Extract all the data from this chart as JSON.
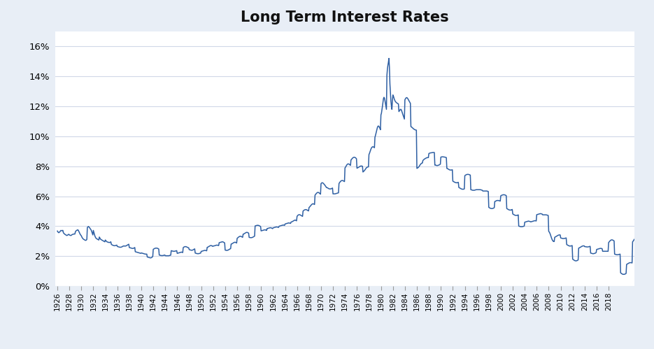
{
  "title": "Long Term Interest Rates",
  "title_fontsize": 15,
  "line_color": "#2E5FA3",
  "background_color": "#E8EEF6",
  "plot_bg_color": "#FFFFFF",
  "ylim": [
    0,
    0.17
  ],
  "yticks": [
    0.0,
    0.02,
    0.04,
    0.06,
    0.08,
    0.1,
    0.12,
    0.14,
    0.16
  ],
  "grid_color": "#D0D8E8",
  "line_width": 1.1,
  "monthly_data": [
    3.68,
    3.63,
    3.58,
    3.57,
    3.6,
    3.63,
    3.68,
    3.72,
    3.71,
    3.7,
    3.72,
    3.72,
    3.57,
    3.52,
    3.5,
    3.46,
    3.44,
    3.42,
    3.4,
    3.38,
    3.4,
    3.42,
    3.45,
    3.46,
    3.42,
    3.4,
    3.39,
    3.38,
    3.4,
    3.43,
    3.45,
    3.46,
    3.47,
    3.48,
    3.48,
    3.48,
    3.62,
    3.68,
    3.71,
    3.73,
    3.75,
    3.76,
    3.72,
    3.65,
    3.57,
    3.5,
    3.44,
    3.4,
    3.36,
    3.28,
    3.22,
    3.18,
    3.14,
    3.12,
    3.1,
    3.08,
    3.06,
    3.06,
    3.08,
    3.12,
    3.92,
    3.95,
    3.98,
    3.96,
    3.92,
    3.88,
    3.82,
    3.78,
    3.72,
    3.62,
    3.52,
    3.42,
    3.72,
    3.6,
    3.48,
    3.36,
    3.28,
    3.22,
    3.18,
    3.16,
    3.14,
    3.12,
    3.1,
    3.08,
    3.28,
    3.22,
    3.16,
    3.12,
    3.1,
    3.08,
    3.06,
    3.04,
    3.02,
    3.0,
    2.98,
    2.96,
    3.08,
    3.04,
    3.0,
    2.97,
    2.95,
    2.94,
    2.93,
    2.92,
    2.91,
    2.92,
    2.94,
    2.96,
    2.8,
    2.77,
    2.75,
    2.73,
    2.72,
    2.71,
    2.7,
    2.7,
    2.71,
    2.72,
    2.73,
    2.74,
    2.65,
    2.64,
    2.63,
    2.62,
    2.61,
    2.6,
    2.6,
    2.6,
    2.61,
    2.62,
    2.64,
    2.66,
    2.68,
    2.68,
    2.68,
    2.68,
    2.68,
    2.68,
    2.7,
    2.72,
    2.74,
    2.76,
    2.78,
    2.8,
    2.58,
    2.57,
    2.56,
    2.55,
    2.54,
    2.53,
    2.52,
    2.52,
    2.52,
    2.54,
    2.56,
    2.58,
    2.3,
    2.29,
    2.28,
    2.27,
    2.26,
    2.25,
    2.24,
    2.23,
    2.22,
    2.21,
    2.2,
    2.19,
    2.22,
    2.21,
    2.2,
    2.19,
    2.18,
    2.17,
    2.16,
    2.15,
    2.14,
    2.14,
    2.14,
    2.14,
    1.95,
    1.94,
    1.93,
    1.92,
    1.91,
    1.9,
    1.89,
    1.89,
    1.9,
    1.92,
    1.95,
    1.98,
    2.46,
    2.48,
    2.5,
    2.52,
    2.53,
    2.54,
    2.54,
    2.54,
    2.53,
    2.52,
    2.5,
    2.48,
    2.08,
    2.07,
    2.06,
    2.05,
    2.04,
    2.04,
    2.04,
    2.04,
    2.05,
    2.06,
    2.07,
    2.08,
    2.04,
    2.03,
    2.03,
    2.03,
    2.03,
    2.03,
    2.03,
    2.03,
    2.04,
    2.05,
    2.06,
    2.07,
    2.37,
    2.36,
    2.35,
    2.34,
    2.33,
    2.33,
    2.33,
    2.33,
    2.34,
    2.35,
    2.36,
    2.37,
    2.19,
    2.2,
    2.21,
    2.22,
    2.23,
    2.24,
    2.25,
    2.26,
    2.27,
    2.27,
    2.26,
    2.24,
    2.57,
    2.6,
    2.62,
    2.63,
    2.64,
    2.64,
    2.63,
    2.62,
    2.6,
    2.58,
    2.57,
    2.56,
    2.44,
    2.43,
    2.42,
    2.41,
    2.4,
    2.4,
    2.4,
    2.41,
    2.43,
    2.45,
    2.47,
    2.49,
    2.21,
    2.2,
    2.19,
    2.18,
    2.17,
    2.17,
    2.17,
    2.17,
    2.18,
    2.19,
    2.2,
    2.21,
    2.32,
    2.33,
    2.34,
    2.35,
    2.36,
    2.37,
    2.38,
    2.39,
    2.39,
    2.38,
    2.37,
    2.36,
    2.59,
    2.6,
    2.62,
    2.64,
    2.66,
    2.68,
    2.7,
    2.71,
    2.71,
    2.7,
    2.68,
    2.66,
    2.68,
    2.68,
    2.69,
    2.7,
    2.71,
    2.72,
    2.73,
    2.74,
    2.74,
    2.73,
    2.72,
    2.71,
    2.9,
    2.91,
    2.92,
    2.93,
    2.94,
    2.95,
    2.96,
    2.96,
    2.95,
    2.93,
    2.91,
    2.89,
    2.41,
    2.4,
    2.39,
    2.39,
    2.39,
    2.4,
    2.41,
    2.43,
    2.45,
    2.47,
    2.49,
    2.51,
    2.81,
    2.82,
    2.84,
    2.86,
    2.88,
    2.9,
    2.92,
    2.93,
    2.93,
    2.92,
    2.9,
    2.88,
    3.19,
    3.22,
    3.25,
    3.28,
    3.3,
    3.32,
    3.33,
    3.33,
    3.32,
    3.3,
    3.28,
    3.26,
    3.47,
    3.48,
    3.5,
    3.52,
    3.54,
    3.56,
    3.58,
    3.59,
    3.59,
    3.58,
    3.56,
    3.54,
    3.26,
    3.25,
    3.24,
    3.24,
    3.24,
    3.24,
    3.25,
    3.26,
    3.28,
    3.3,
    3.32,
    3.34,
    4.02,
    4.03,
    4.04,
    4.05,
    4.06,
    4.06,
    4.06,
    4.05,
    4.04,
    4.02,
    4.0,
    3.98,
    3.69,
    3.7,
    3.71,
    3.72,
    3.73,
    3.74,
    3.75,
    3.76,
    3.76,
    3.75,
    3.74,
    3.72,
    3.85,
    3.85,
    3.86,
    3.87,
    3.88,
    3.89,
    3.9,
    3.9,
    3.89,
    3.88,
    3.86,
    3.84,
    3.89,
    3.9,
    3.91,
    3.92,
    3.93,
    3.94,
    3.95,
    3.95,
    3.95,
    3.94,
    3.93,
    3.92,
    4.0,
    4.01,
    4.02,
    4.03,
    4.04,
    4.05,
    4.06,
    4.07,
    4.08,
    4.08,
    4.07,
    4.06,
    4.15,
    4.16,
    4.17,
    4.18,
    4.19,
    4.2,
    4.21,
    4.22,
    4.22,
    4.21,
    4.2,
    4.19,
    4.28,
    4.29,
    4.3,
    4.32,
    4.34,
    4.36,
    4.38,
    4.4,
    4.41,
    4.4,
    4.38,
    4.36,
    4.66,
    4.7,
    4.74,
    4.76,
    4.77,
    4.77,
    4.76,
    4.74,
    4.72,
    4.7,
    4.68,
    4.66,
    5.01,
    5.04,
    5.07,
    5.09,
    5.1,
    5.11,
    5.11,
    5.1,
    5.08,
    5.06,
    5.04,
    5.02,
    5.25,
    5.28,
    5.32,
    5.36,
    5.4,
    5.44,
    5.47,
    5.49,
    5.5,
    5.49,
    5.47,
    5.45,
    6.07,
    6.12,
    6.16,
    6.2,
    6.23,
    6.25,
    6.26,
    6.25,
    6.23,
    6.2,
    6.17,
    6.14,
    6.84,
    6.88,
    6.9,
    6.9,
    6.88,
    6.85,
    6.81,
    6.77,
    6.73,
    6.68,
    6.63,
    6.58,
    6.58,
    6.56,
    6.54,
    6.52,
    6.5,
    6.49,
    6.49,
    6.49,
    6.5,
    6.51,
    6.53,
    6.55,
    6.16,
    6.16,
    6.16,
    6.16,
    6.16,
    6.17,
    6.18,
    6.19,
    6.2,
    6.21,
    6.22,
    6.23,
    6.85,
    6.9,
    6.95,
    6.99,
    7.02,
    7.04,
    7.05,
    7.05,
    7.04,
    7.02,
    7.0,
    6.98,
    7.89,
    7.94,
    8.0,
    8.06,
    8.11,
    8.14,
    8.16,
    8.16,
    8.14,
    8.12,
    8.09,
    8.06,
    8.42,
    8.46,
    8.5,
    8.54,
    8.57,
    8.59,
    8.6,
    8.6,
    8.59,
    8.57,
    8.54,
    8.5,
    7.87,
    7.89,
    7.91,
    7.93,
    7.95,
    7.97,
    7.99,
    8.01,
    8.02,
    8.02,
    8.01,
    8.0,
    7.62,
    7.65,
    7.68,
    7.72,
    7.76,
    7.81,
    7.86,
    7.9,
    7.93,
    7.95,
    7.96,
    7.96,
    8.78,
    8.86,
    8.96,
    9.06,
    9.15,
    9.22,
    9.27,
    9.3,
    9.3,
    9.29,
    9.27,
    9.24,
    9.94,
    10.05,
    10.19,
    10.34,
    10.49,
    10.6,
    10.67,
    10.69,
    10.66,
    10.6,
    10.53,
    10.44,
    11.43,
    11.54,
    11.76,
    12.0,
    12.25,
    12.5,
    12.6,
    12.55,
    12.4,
    12.2,
    12.0,
    11.8,
    14.08,
    14.5,
    14.75,
    14.94,
    15.2,
    14.6,
    13.5,
    12.92,
    12.34,
    12.02,
    11.8,
    12.4,
    12.76,
    12.68,
    12.57,
    12.46,
    12.38,
    12.32,
    12.28,
    12.25,
    12.22,
    12.2,
    12.18,
    12.16,
    11.65,
    11.7,
    11.75,
    11.8,
    11.8,
    11.75,
    11.65,
    11.55,
    11.45,
    11.35,
    11.25,
    11.15,
    12.44,
    12.5,
    12.55,
    12.58,
    12.58,
    12.55,
    12.5,
    12.44,
    12.38,
    12.32,
    12.26,
    12.2,
    10.65,
    10.63,
    10.6,
    10.57,
    10.54,
    10.51,
    10.48,
    10.46,
    10.44,
    10.43,
    10.42,
    10.41,
    7.86,
    7.88,
    7.9,
    7.93,
    7.97,
    8.02,
    8.07,
    8.12,
    8.16,
    8.19,
    8.21,
    8.22,
    8.38,
    8.42,
    8.45,
    8.48,
    8.5,
    8.52,
    8.54,
    8.56,
    8.57,
    8.58,
    8.58,
    8.58,
    8.85,
    8.87,
    8.88,
    8.89,
    8.9,
    8.9,
    8.91,
    8.91,
    8.92,
    8.92,
    8.92,
    8.92,
    8.08,
    8.08,
    8.07,
    8.06,
    8.05,
    8.05,
    8.06,
    8.07,
    8.08,
    8.1,
    8.12,
    8.14,
    8.61,
    8.62,
    8.63,
    8.63,
    8.63,
    8.63,
    8.62,
    8.62,
    8.61,
    8.6,
    8.59,
    8.58,
    7.86,
    7.85,
    7.83,
    7.81,
    7.79,
    7.77,
    7.76,
    7.75,
    7.75,
    7.75,
    7.76,
    7.77,
    7.01,
    6.99,
    6.97,
    6.95,
    6.93,
    6.92,
    6.91,
    6.9,
    6.9,
    6.91,
    6.92,
    6.93,
    6.59,
    6.57,
    6.55,
    6.53,
    6.51,
    6.49,
    6.48,
    6.47,
    6.47,
    6.47,
    6.48,
    6.49,
    7.37,
    7.4,
    7.42,
    7.44,
    7.45,
    7.46,
    7.46,
    7.46,
    7.45,
    7.44,
    7.43,
    7.41,
    6.44,
    6.43,
    6.42,
    6.41,
    6.4,
    6.4,
    6.4,
    6.4,
    6.41,
    6.42,
    6.43,
    6.44,
    6.44,
    6.44,
    6.44,
    6.44,
    6.44,
    6.44,
    6.44,
    6.44,
    6.43,
    6.42,
    6.41,
    6.4,
    6.35,
    6.35,
    6.35,
    6.35,
    6.35,
    6.35,
    6.35,
    6.35,
    6.35,
    6.34,
    6.33,
    6.32,
    5.26,
    5.24,
    5.22,
    5.2,
    5.19,
    5.18,
    5.18,
    5.18,
    5.19,
    5.2,
    5.22,
    5.24,
    5.65,
    5.66,
    5.68,
    5.7,
    5.71,
    5.72,
    5.72,
    5.72,
    5.71,
    5.7,
    5.69,
    5.68,
    6.03,
    6.05,
    6.07,
    6.08,
    6.09,
    6.1,
    6.1,
    6.1,
    6.09,
    6.08,
    6.06,
    6.04,
    5.18,
    5.16,
    5.14,
    5.12,
    5.1,
    5.09,
    5.08,
    5.08,
    5.08,
    5.09,
    5.1,
    5.12,
    4.82,
    4.8,
    4.78,
    4.76,
    4.74,
    4.73,
    4.72,
    4.72,
    4.72,
    4.73,
    4.74,
    4.76,
    4.01,
    4.0,
    3.99,
    3.98,
    3.97,
    3.97,
    3.97,
    3.97,
    3.98,
    3.99,
    4.0,
    4.01,
    4.27,
    4.28,
    4.29,
    4.3,
    4.31,
    4.32,
    4.33,
    4.34,
    4.34,
    4.33,
    4.32,
    4.31,
    4.29,
    4.3,
    4.31,
    4.32,
    4.33,
    4.34,
    4.35,
    4.36,
    4.37,
    4.37,
    4.36,
    4.35,
    4.77,
    4.78,
    4.79,
    4.8,
    4.81,
    4.82,
    4.83,
    4.84,
    4.84,
    4.83,
    4.82,
    4.81,
    4.76,
    4.76,
    4.76,
    4.76,
    4.76,
    4.76,
    4.76,
    4.76,
    4.75,
    4.74,
    4.73,
    4.72,
    3.66,
    3.62,
    3.56,
    3.48,
    3.38,
    3.28,
    3.18,
    3.1,
    3.04,
    3.0,
    2.98,
    2.98,
    3.26,
    3.28,
    3.3,
    3.32,
    3.34,
    3.36,
    3.38,
    3.4,
    3.41,
    3.42,
    3.42,
    3.42,
    3.22,
    3.21,
    3.2,
    3.19,
    3.18,
    3.18,
    3.18,
    3.18,
    3.19,
    3.2,
    3.21,
    3.22,
    2.78,
    2.76,
    2.74,
    2.72,
    2.7,
    2.69,
    2.68,
    2.68,
    2.68,
    2.69,
    2.7,
    2.71,
    1.8,
    1.78,
    1.76,
    1.73,
    1.71,
    1.7,
    1.69,
    1.69,
    1.7,
    1.71,
    1.73,
    1.75,
    2.54,
    2.55,
    2.57,
    2.59,
    2.61,
    2.63,
    2.65,
    2.67,
    2.68,
    2.69,
    2.69,
    2.69,
    2.64,
    2.64,
    2.63,
    2.63,
    2.62,
    2.62,
    2.62,
    2.62,
    2.63,
    2.64,
    2.65,
    2.66,
    2.21,
    2.2,
    2.19,
    2.18,
    2.17,
    2.17,
    2.17,
    2.18,
    2.19,
    2.2,
    2.22,
    2.24,
    2.45,
    2.46,
    2.47,
    2.48,
    2.49,
    2.5,
    2.51,
    2.52,
    2.52,
    2.52,
    2.51,
    2.5,
    2.33,
    2.33,
    2.33,
    2.33,
    2.33,
    2.33,
    2.33,
    2.33,
    2.33,
    2.33,
    2.33,
    2.33,
    2.91,
    2.95,
    2.99,
    3.03,
    3.06,
    3.08,
    3.09,
    3.09,
    3.08,
    3.06,
    3.04,
    3.02,
    2.14,
    2.13,
    2.12,
    2.11,
    2.1,
    2.1,
    2.1,
    2.1,
    2.11,
    2.12,
    2.13,
    2.14,
    0.89,
    0.87,
    0.84,
    0.82,
    0.8,
    0.79,
    0.79,
    0.79,
    0.8,
    0.81,
    0.83,
    0.85,
    1.45,
    1.47,
    1.49,
    1.51,
    1.53,
    1.55,
    1.56,
    1.57,
    1.57,
    1.57,
    1.56,
    1.55,
    2.96,
    3.0,
    3.05,
    3.1,
    3.14,
    3.17,
    3.18,
    3.17,
    3.15,
    3.12,
    3.09,
    3.06
  ]
}
